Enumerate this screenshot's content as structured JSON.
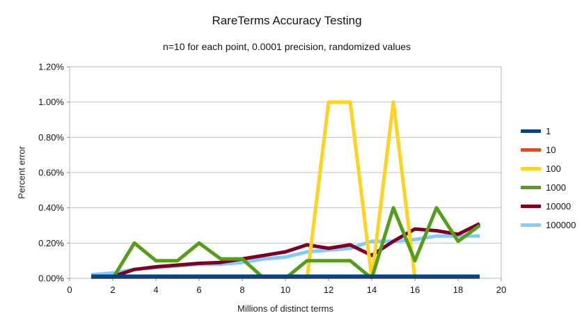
{
  "chart_data": {
    "type": "line",
    "title": "RareTerms Accuracy Testing",
    "subtitle": "n=10 for each point, 0.0001 precision, randomized values",
    "xlabel": "Millions of distinct terms",
    "ylabel": "Percent error",
    "xlim": [
      0,
      20
    ],
    "ylim": [
      0,
      1.2
    ],
    "y_unit": "percent",
    "grid": "horizontal",
    "legend_position": "right",
    "x_tick_labels": [
      "0",
      "2",
      "4",
      "6",
      "8",
      "10",
      "12",
      "14",
      "16",
      "18",
      "20"
    ],
    "x_tick_values": [
      0,
      2,
      4,
      6,
      8,
      10,
      12,
      14,
      16,
      18,
      20
    ],
    "y_tick_labels": [
      "0.00%",
      "0.20%",
      "0.40%",
      "0.60%",
      "0.80%",
      "1.00%",
      "1.20%"
    ],
    "y_tick_values": [
      0,
      0.2,
      0.4,
      0.6,
      0.8,
      1.0,
      1.2
    ],
    "x": [
      1,
      2,
      3,
      4,
      5,
      6,
      7,
      8,
      9,
      10,
      11,
      12,
      13,
      14,
      15,
      16,
      17,
      18,
      19
    ],
    "series": [
      {
        "name": "1",
        "color": "#004586",
        "stroke_width": 6,
        "values": [
          0.01,
          0.01,
          0.01,
          0.01,
          0.01,
          0.01,
          0.01,
          0.01,
          0.01,
          0.01,
          0.01,
          0.01,
          0.01,
          0.01,
          0.01,
          0.01,
          0.01,
          0.01,
          0.01
        ]
      },
      {
        "name": "10",
        "color": "#ff420e",
        "stroke_width": 5,
        "values": [
          0,
          0,
          0,
          0,
          0,
          0,
          0,
          0,
          0,
          0,
          0,
          0,
          0,
          0,
          0,
          0,
          0,
          0,
          0
        ]
      },
      {
        "name": "100",
        "color": "#ffd320",
        "stroke_width": 5,
        "values": [
          0,
          0,
          0,
          0,
          0,
          0,
          0,
          0,
          0,
          0,
          0,
          1.0,
          1.0,
          0,
          1.0,
          0,
          0,
          0,
          0
        ]
      },
      {
        "name": "1000",
        "color": "#579d1c",
        "stroke_width": 5,
        "values": [
          0,
          0,
          0.2,
          0.1,
          0.1,
          0.2,
          0.11,
          0.11,
          0,
          0,
          0.1,
          0.1,
          0.1,
          0,
          0.4,
          0.1,
          0.4,
          0.21,
          0.3
        ]
      },
      {
        "name": "10000",
        "color": "#7e0021",
        "stroke_width": 5,
        "values": [
          0.01,
          0.01,
          0.05,
          0.065,
          0.075,
          0.085,
          0.09,
          0.11,
          0.13,
          0.15,
          0.19,
          0.17,
          0.19,
          0.13,
          0.21,
          0.28,
          0.27,
          0.25,
          0.31
        ]
      },
      {
        "name": "100000",
        "color": "#83caff",
        "stroke_width": 5,
        "values": [
          0.02,
          0.03,
          0.05,
          0.06,
          0.07,
          0.08,
          0.08,
          0.09,
          0.11,
          0.12,
          0.15,
          0.16,
          0.17,
          0.21,
          0.21,
          0.22,
          0.24,
          0.24,
          0.24
        ]
      }
    ]
  }
}
